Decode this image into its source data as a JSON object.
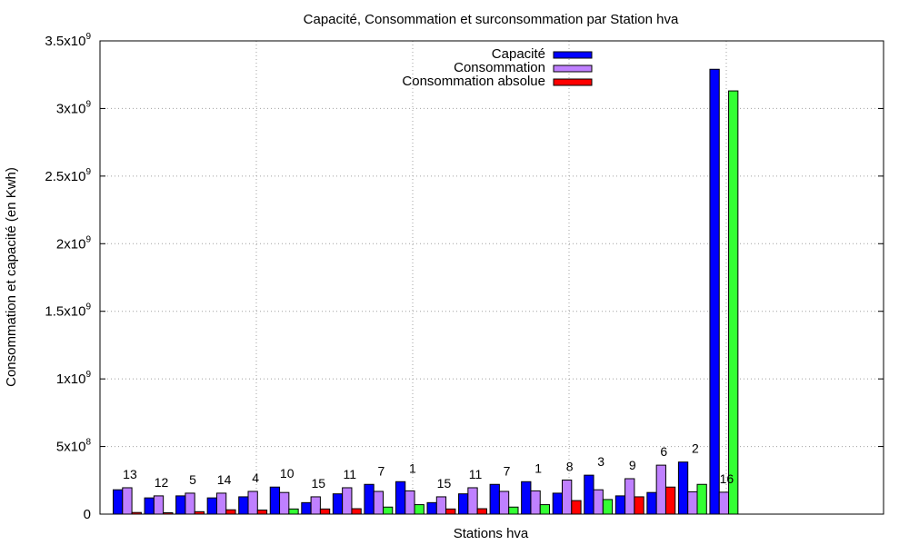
{
  "chart_data": {
    "type": "bar",
    "title": "Capacité, Consommation et surconsommation par Station hva",
    "xlabel": "Stations hva",
    "ylabel": "Consommation et capacité (en Kwh)",
    "ylim": [
      0,
      3500000000
    ],
    "yticks": [
      {
        "value": 0,
        "base": "0",
        "exp": ""
      },
      {
        "value": 500000000,
        "base": "5x10",
        "exp": "8"
      },
      {
        "value": 1000000000,
        "base": "1x10",
        "exp": "9"
      },
      {
        "value": 1500000000,
        "base": "1.5x10",
        "exp": "9"
      },
      {
        "value": 2000000000,
        "base": "2x10",
        "exp": "9"
      },
      {
        "value": 2500000000,
        "base": "2.5x10",
        "exp": "9"
      },
      {
        "value": 3000000000,
        "base": "3x10",
        "exp": "9"
      },
      {
        "value": 3500000000,
        "base": "3.5x10",
        "exp": "9"
      }
    ],
    "grid": true,
    "legend_position": "top",
    "legend": [
      {
        "name": "Capacité",
        "color": "#0000ff"
      },
      {
        "name": "Consommation",
        "color": "#bf80ff"
      },
      {
        "name": "Consommation absolue",
        "color": "#ff0000"
      }
    ],
    "groups": [
      {
        "label": "13",
        "capacite": 180000000,
        "consommation": 195000000,
        "absolue": 12000000,
        "absolue_color": "#ff0000"
      },
      {
        "label": "12",
        "capacite": 120000000,
        "consommation": 135000000,
        "absolue": 10000000,
        "absolue_color": "#ff0000"
      },
      {
        "label": "5",
        "capacite": 135000000,
        "consommation": 155000000,
        "absolue": 18000000,
        "absolue_color": "#ff0000"
      },
      {
        "label": "14",
        "capacite": 120000000,
        "consommation": 155000000,
        "absolue": 32000000,
        "absolue_color": "#ff0000"
      },
      {
        "label": "4",
        "capacite": 128000000,
        "consommation": 168000000,
        "absolue": 30000000,
        "absolue_color": "#ff0000"
      },
      {
        "label": "10",
        "capacite": 200000000,
        "consommation": 160000000,
        "absolue": 38000000,
        "absolue_color": "#33ff33"
      },
      {
        "label": "15",
        "capacite": 85000000,
        "consommation": 128000000,
        "absolue": 38000000,
        "absolue_color": "#ff0000"
      },
      {
        "label": "11",
        "capacite": 150000000,
        "consommation": 195000000,
        "absolue": 40000000,
        "absolue_color": "#ff0000"
      },
      {
        "label": "7",
        "capacite": 220000000,
        "consommation": 168000000,
        "absolue": 52000000,
        "absolue_color": "#33ff33"
      },
      {
        "label": "1",
        "capacite": 240000000,
        "consommation": 172000000,
        "absolue": 70000000,
        "absolue_color": "#33ff33"
      },
      {
        "label": "15",
        "capacite": 85000000,
        "consommation": 128000000,
        "absolue": 38000000,
        "absolue_color": "#ff0000"
      },
      {
        "label": "11",
        "capacite": 150000000,
        "consommation": 195000000,
        "absolue": 40000000,
        "absolue_color": "#ff0000"
      },
      {
        "label": "7",
        "capacite": 220000000,
        "consommation": 168000000,
        "absolue": 52000000,
        "absolue_color": "#33ff33"
      },
      {
        "label": "1",
        "capacite": 240000000,
        "consommation": 172000000,
        "absolue": 70000000,
        "absolue_color": "#33ff33"
      },
      {
        "label": "8",
        "capacite": 155000000,
        "consommation": 252000000,
        "absolue": 100000000,
        "absolue_color": "#ff0000"
      },
      {
        "label": "3",
        "capacite": 288000000,
        "consommation": 180000000,
        "absolue": 108000000,
        "absolue_color": "#33ff33"
      },
      {
        "label": "9",
        "capacite": 135000000,
        "consommation": 262000000,
        "absolue": 128000000,
        "absolue_color": "#ff0000"
      },
      {
        "label": "6",
        "capacite": 160000000,
        "consommation": 362000000,
        "absolue": 200000000,
        "absolue_color": "#ff0000"
      },
      {
        "label": "2",
        "capacite": 385000000,
        "consommation": 165000000,
        "absolue": 220000000,
        "absolue_color": "#33ff33"
      },
      {
        "label": "16",
        "capacite": 3290000000,
        "consommation": 162000000,
        "absolue": 3130000000,
        "absolue_color": "#33ff33"
      }
    ]
  }
}
